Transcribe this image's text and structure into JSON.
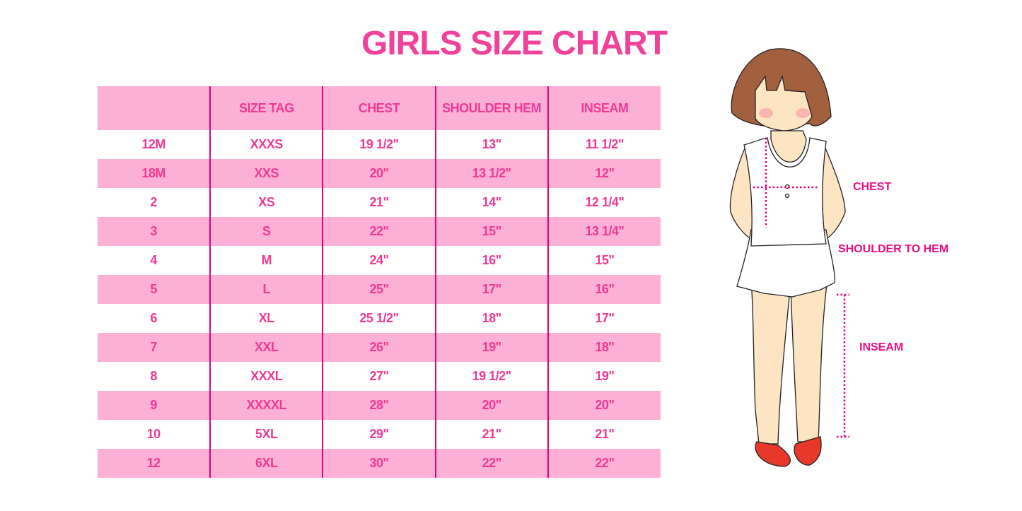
{
  "title": "GIRLS SIZE CHART",
  "colors": {
    "accent": "#f0429a",
    "row_pink": "#fdb0d6",
    "divider": "#e4007c"
  },
  "table": {
    "headers": [
      "",
      "SIZE TAG",
      "CHEST",
      "SHOULDER HEM",
      "INSEAM"
    ],
    "rows": [
      [
        "12M",
        "XXXS",
        "19 1/2\"",
        "13\"",
        "11 1/2\""
      ],
      [
        "18M",
        "XXS",
        "20\"",
        "13 1/2\"",
        "12\""
      ],
      [
        "2",
        "XS",
        "21\"",
        "14\"",
        "12 1/4\""
      ],
      [
        "3",
        "S",
        "22\"",
        "15\"",
        "13 1/4\""
      ],
      [
        "4",
        "M",
        "24\"",
        "16\"",
        "15\""
      ],
      [
        "5",
        "L",
        "25\"",
        "17\"",
        "16\""
      ],
      [
        "6",
        "XL",
        "25 1/2\"",
        "18\"",
        "17\""
      ],
      [
        "7",
        "XXL",
        "26\"",
        "19\"",
        "18\""
      ],
      [
        "8",
        "XXXL",
        "27\"",
        "19 1/2\"",
        "19\""
      ],
      [
        "9",
        "XXXXL",
        "28\"",
        "20\"",
        "20\""
      ],
      [
        "10",
        "5XL",
        "29\"",
        "21\"",
        "21\""
      ],
      [
        "12",
        "6XL",
        "30\"",
        "22\"",
        "22\""
      ]
    ]
  },
  "diagram": {
    "labels": {
      "chest": "CHEST",
      "shoulder_to_hem": "SHOULDER TO HEM",
      "inseam": "INSEAM"
    }
  }
}
